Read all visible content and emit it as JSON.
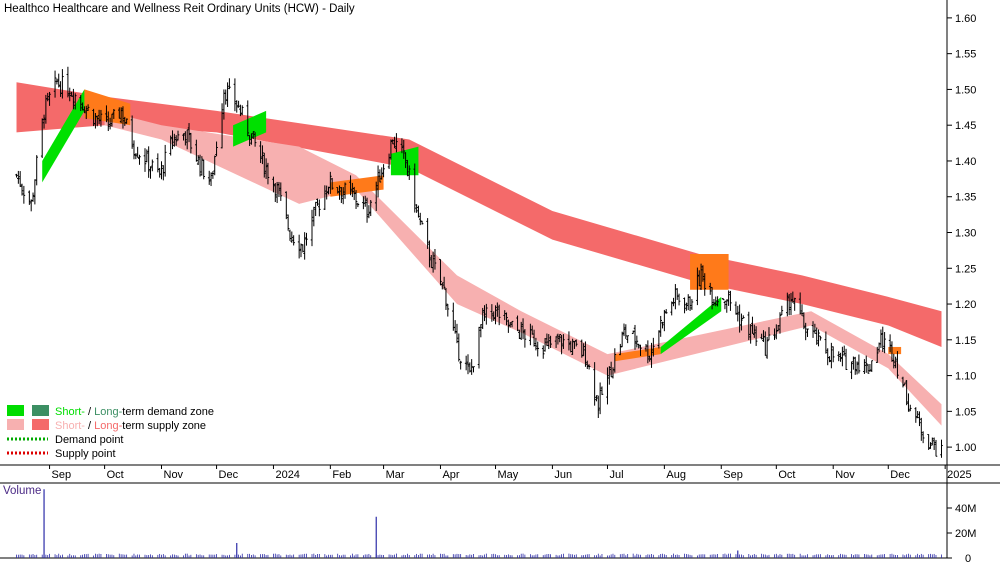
{
  "chart_data": {
    "type": "candlestick",
    "title": "Healthco Healthcare and Wellness Reit Ordinary Units (HCW) - Daily",
    "x_labels": [
      "Sep",
      "Oct",
      "Nov",
      "Dec",
      "2024",
      "Feb",
      "Mar",
      "Apr",
      "May",
      "Jun",
      "Jul",
      "Aug",
      "Sep",
      "Oct",
      "Nov",
      "Dec",
      "2025"
    ],
    "y_ticks": [
      "1.60",
      "1.55",
      "1.50",
      "1.45",
      "1.40",
      "1.35",
      "1.30",
      "1.25",
      "1.20",
      "1.15",
      "1.10",
      "1.05",
      "1.00"
    ],
    "ylim": [
      0.975,
      1.625
    ],
    "price_path": [
      [
        "2023-08-14",
        1.38
      ],
      [
        "2023-08-22",
        1.34
      ],
      [
        "2023-08-29",
        1.47
      ],
      [
        "2023-09-05",
        1.51
      ],
      [
        "2023-09-12",
        1.5
      ],
      [
        "2023-09-19",
        1.48
      ],
      [
        "2023-09-26",
        1.46
      ],
      [
        "2023-10-03",
        1.45
      ],
      [
        "2023-10-10",
        1.47
      ],
      [
        "2023-10-17",
        1.42
      ],
      [
        "2023-10-24",
        1.4
      ],
      [
        "2023-10-31",
        1.38
      ],
      [
        "2023-11-07",
        1.43
      ],
      [
        "2023-11-14",
        1.44
      ],
      [
        "2023-11-21",
        1.4
      ],
      [
        "2023-11-28",
        1.37
      ],
      [
        "2023-12-05",
        1.5
      ],
      [
        "2023-12-12",
        1.48
      ],
      [
        "2023-12-19",
        1.44
      ],
      [
        "2023-12-26",
        1.4
      ],
      [
        "2024-01-03",
        1.36
      ],
      [
        "2024-01-10",
        1.3
      ],
      [
        "2024-01-17",
        1.28
      ],
      [
        "2024-01-24",
        1.33
      ],
      [
        "2024-01-31",
        1.37
      ],
      [
        "2024-02-07",
        1.36
      ],
      [
        "2024-02-14",
        1.35
      ],
      [
        "2024-02-21",
        1.33
      ],
      [
        "2024-02-28",
        1.38
      ],
      [
        "2024-03-06",
        1.43
      ],
      [
        "2024-03-13",
        1.4
      ],
      [
        "2024-03-20",
        1.32
      ],
      [
        "2024-03-27",
        1.26
      ],
      [
        "2024-04-03",
        1.22
      ],
      [
        "2024-04-10",
        1.14
      ],
      [
        "2024-04-17",
        1.1
      ],
      [
        "2024-04-24",
        1.18
      ],
      [
        "2024-05-01",
        1.19
      ],
      [
        "2024-05-08",
        1.17
      ],
      [
        "2024-05-15",
        1.16
      ],
      [
        "2024-05-22",
        1.15
      ],
      [
        "2024-05-29",
        1.14
      ],
      [
        "2024-06-05",
        1.15
      ],
      [
        "2024-06-12",
        1.14
      ],
      [
        "2024-06-19",
        1.13
      ],
      [
        "2024-06-26",
        1.06
      ],
      [
        "2024-07-03",
        1.11
      ],
      [
        "2024-07-10",
        1.16
      ],
      [
        "2024-07-17",
        1.15
      ],
      [
        "2024-07-24",
        1.13
      ],
      [
        "2024-07-31",
        1.18
      ],
      [
        "2024-08-07",
        1.21
      ],
      [
        "2024-08-14",
        1.2
      ],
      [
        "2024-08-21",
        1.24
      ],
      [
        "2024-08-28",
        1.21
      ],
      [
        "2024-09-04",
        1.21
      ],
      [
        "2024-09-11",
        1.18
      ],
      [
        "2024-09-18",
        1.16
      ],
      [
        "2024-09-25",
        1.14
      ],
      [
        "2024-10-02",
        1.17
      ],
      [
        "2024-10-09",
        1.21
      ],
      [
        "2024-10-16",
        1.17
      ],
      [
        "2024-10-23",
        1.15
      ],
      [
        "2024-10-30",
        1.13
      ],
      [
        "2024-11-06",
        1.12
      ],
      [
        "2024-11-13",
        1.12
      ],
      [
        "2024-11-20",
        1.11
      ],
      [
        "2024-11-27",
        1.15
      ],
      [
        "2024-12-04",
        1.13
      ],
      [
        "2024-12-11",
        1.07
      ],
      [
        "2024-12-18",
        1.03
      ],
      [
        "2024-12-23",
        1.01
      ],
      [
        "2024-12-30",
        0.99
      ]
    ],
    "long_term_supply_zone": [
      [
        "2023-08-14",
        1.44,
        1.51
      ],
      [
        "2023-10-01",
        1.45,
        1.49
      ],
      [
        "2023-12-01",
        1.44,
        1.47
      ],
      [
        "2024-03-15",
        1.39,
        1.43
      ],
      [
        "2024-06-01",
        1.29,
        1.33
      ],
      [
        "2024-08-20",
        1.23,
        1.27
      ],
      [
        "2024-10-15",
        1.2,
        1.24
      ],
      [
        "2024-12-01",
        1.17,
        1.21
      ],
      [
        "2024-12-30",
        1.14,
        1.19
      ]
    ],
    "short_term_supply_zone": [
      [
        "2023-10-01",
        1.45,
        1.47
      ],
      [
        "2023-11-01",
        1.43,
        1.45
      ],
      [
        "2024-01-15",
        1.34,
        1.42
      ],
      [
        "2024-02-15",
        1.36,
        1.38
      ],
      [
        "2024-04-10",
        1.2,
        1.24
      ],
      [
        "2024-05-15",
        1.16,
        1.19
      ],
      [
        "2024-07-01",
        1.1,
        1.13
      ],
      [
        "2024-10-20",
        1.17,
        1.19
      ],
      [
        "2024-12-01",
        1.11,
        1.13
      ],
      [
        "2024-12-30",
        1.03,
        1.06
      ]
    ],
    "volume": {
      "ylabel": "Volume",
      "y_ticks": [
        "40M",
        "20M",
        "0"
      ],
      "spikes": [
        [
          "2023-08-29",
          55
        ],
        [
          "2023-12-12",
          12
        ],
        [
          "2024-02-26",
          33
        ],
        [
          "2024-09-10",
          6
        ]
      ],
      "baseline_m": 2
    },
    "legend": [
      {
        "short": "Short-",
        "sep": " / ",
        "long": "Long-",
        "text": "term demand zone",
        "short_color": "#00dd00",
        "long_color": "#3c8f63"
      },
      {
        "short": "Short-",
        "sep": " / ",
        "long": "Long-",
        "text": "term supply zone",
        "short_color": "#f7b0b0",
        "long_color": "#f46a6a"
      },
      {
        "text": "Demand point",
        "color": "#00aa00"
      },
      {
        "text": "Supply point",
        "color": "#dd0000"
      }
    ]
  }
}
